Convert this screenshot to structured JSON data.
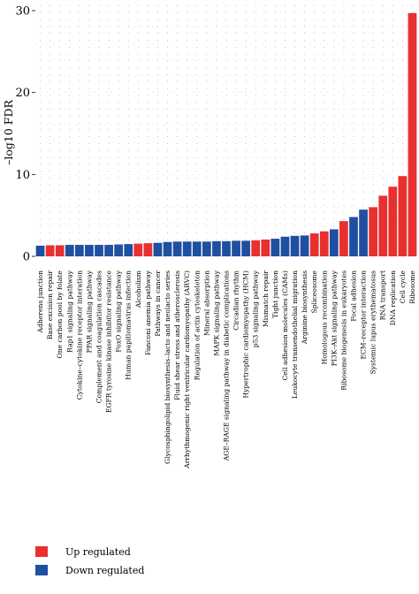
{
  "chart_data": {
    "type": "bar",
    "ylabel": "–log10 FDR",
    "xlabel": "",
    "ylim": [
      0,
      30
    ],
    "yticks": [
      0,
      10,
      20,
      30
    ],
    "grid": true,
    "legend_position": "bottom-left",
    "colors": {
      "up": "#e8302f",
      "down": "#1f4fa0"
    },
    "series": [
      {
        "name": "Up regulated",
        "key": "up"
      },
      {
        "name": "Down regulated",
        "key": "down"
      }
    ],
    "categories": [
      "Adherens junction",
      "Base excision repair",
      "One carbon pool by folate",
      "Rap1 signaling pathway",
      "Cytokine–cytokine receptor interation",
      "PPAR signaling pathway",
      "Complement and coagulation cascades",
      "EGFR tyrosine kinase inhibitor resistance",
      "FoxO signaling pathway",
      "Human papillomavirus infection",
      "Alcoholism",
      "Fanconi anemia pathway",
      "Pathways in cancer",
      "Glycosphingolipid biosynthesis–lacto and neolacto series",
      "Fluid shear stress and atherosclerosis",
      "Arrhythmogenic right ventricular cardiomyopathy (ARVC)",
      "Regulation of actin cytoskeleton",
      "Mineral absorption",
      "MAPK signaling pathway",
      "AGE–RAGE signaling pathway in diabetic complications",
      "Circadian rhythm",
      "Hypertrophic cardiomyopathy (HCM)",
      "p53 signaling pathway",
      "Mismatch repair",
      "Tight junction",
      "Cell adhesion molecules (CAMs)",
      "Leukocyte transendothelial migration",
      "Arginine biosynthesis",
      "Spliceosome",
      "Homologous recombination",
      "PI3K–Akt signaling pathway",
      "Ribosome biogenesis in eukaryotes",
      "Focal adhesion",
      "ECM–receptor interaction",
      "Systemic lupus erythematosus",
      "RNA transport",
      "DNA replication",
      "Cell cycle",
      "Ribosome"
    ],
    "values": [
      1.3,
      1.35,
      1.35,
      1.4,
      1.4,
      1.4,
      1.4,
      1.4,
      1.45,
      1.5,
      1.55,
      1.6,
      1.65,
      1.75,
      1.8,
      1.8,
      1.8,
      1.8,
      1.85,
      1.85,
      1.9,
      1.9,
      1.95,
      2.05,
      2.15,
      2.4,
      2.5,
      2.55,
      2.8,
      3.05,
      3.3,
      4.3,
      4.8,
      5.7,
      6.0,
      7.4,
      8.5,
      9.8,
      29.7
    ],
    "groups": [
      "down",
      "up",
      "up",
      "down",
      "down",
      "down",
      "down",
      "down",
      "down",
      "down",
      "up",
      "up",
      "down",
      "down",
      "down",
      "down",
      "down",
      "down",
      "down",
      "down",
      "down",
      "down",
      "up",
      "up",
      "down",
      "down",
      "down",
      "down",
      "up",
      "up",
      "down",
      "up",
      "down",
      "down",
      "up",
      "up",
      "up",
      "up",
      "up"
    ]
  }
}
